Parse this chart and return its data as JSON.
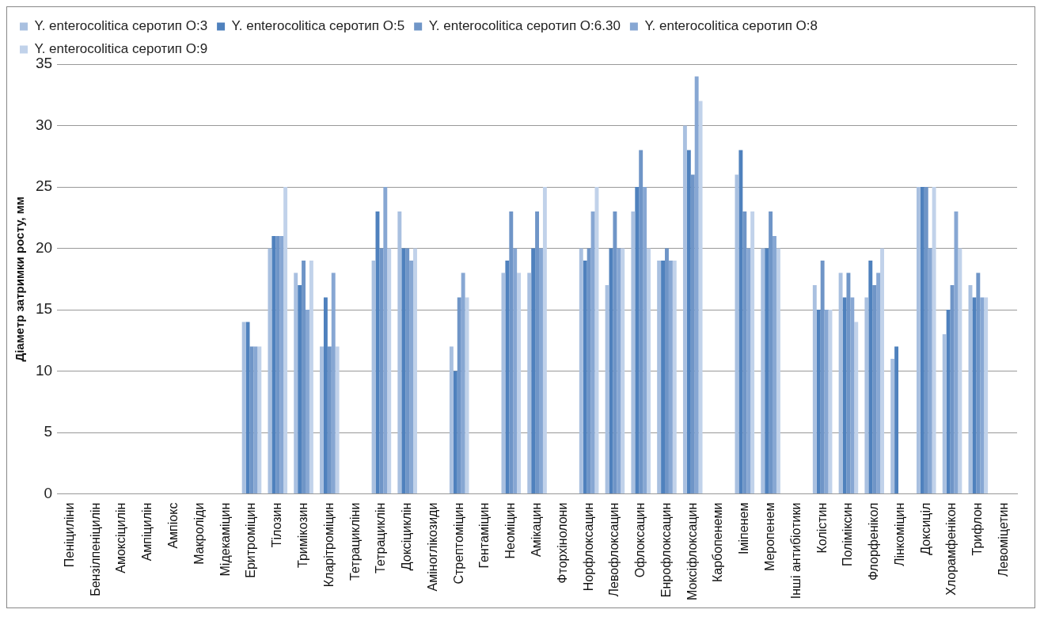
{
  "chart_data": {
    "type": "bar",
    "ylabel": "Діаметр затримки росту, мм",
    "categories": [
      "Пеніциліни",
      "Бензілпеніцилін",
      "Амоксіцилін",
      "Ампіцилін",
      "Ампіокс",
      "Макроліди",
      "Мідекаміцин",
      "Еритроміцин",
      "Тілозин",
      "Тримікозин",
      "Кларітроміцин",
      "Тетрацикліни",
      "Тетрациклін",
      "Доксіциклін",
      "Аміноглікозиди",
      "Стрептоміцин",
      "Гентаміцин",
      "Неоміцин",
      "Амікацин",
      "Фторхінолони",
      "Норфлоксацин",
      "Левофлоксацин",
      "Офлоксацин",
      "Енрофлоксацин",
      "Моксіфлоксацин",
      "Карбопенеми",
      "Іміпенем",
      "Меропенем",
      "Інші антибіотики",
      "Колістин",
      "Поліміксин",
      "Флорфенікол",
      "Лінкоміцин",
      "Доксиціл",
      "Хлорамфенікон",
      "Трифлон",
      "Левоміцетин"
    ],
    "series": [
      {
        "name": "Y. enterocolitica серотип O:3",
        "color": "#a9c0e0",
        "values": [
          0,
          0,
          0,
          0,
          0,
          0,
          0,
          14,
          20,
          18,
          12,
          0,
          19,
          23,
          0,
          12,
          0,
          18,
          18,
          0,
          20,
          17,
          23,
          19,
          30,
          0,
          26,
          20,
          0,
          17,
          18,
          16,
          11,
          25,
          13,
          17,
          0
        ]
      },
      {
        "name": "Y. enterocolitica серотип O:5",
        "color": "#4f81bd",
        "values": [
          0,
          0,
          0,
          0,
          0,
          0,
          0,
          14,
          21,
          17,
          16,
          0,
          23,
          20,
          0,
          10,
          0,
          19,
          20,
          0,
          19,
          20,
          25,
          19,
          28,
          0,
          28,
          20,
          0,
          15,
          16,
          19,
          12,
          25,
          15,
          16,
          0
        ]
      },
      {
        "name": "Y. enterocolitica серотип O:6.30",
        "color": "#6f95c7",
        "values": [
          0,
          0,
          0,
          0,
          0,
          0,
          0,
          12,
          21,
          19,
          12,
          0,
          20,
          20,
          0,
          16,
          0,
          23,
          23,
          0,
          20,
          23,
          28,
          20,
          26,
          0,
          23,
          23,
          0,
          19,
          18,
          17,
          0,
          25,
          17,
          18,
          0
        ]
      },
      {
        "name": "Y. enterocolitica серотип O:8",
        "color": "#87a7d3",
        "values": [
          0,
          0,
          0,
          0,
          0,
          0,
          0,
          12,
          21,
          15,
          18,
          0,
          25,
          19,
          0,
          18,
          0,
          20,
          20,
          0,
          23,
          20,
          25,
          19,
          34,
          0,
          20,
          21,
          0,
          15,
          16,
          18,
          0,
          20,
          23,
          16,
          0
        ]
      },
      {
        "name": "Y. enterocolitica серотип O:9",
        "color": "#c1d2ea",
        "values": [
          0,
          0,
          0,
          0,
          0,
          0,
          0,
          12,
          25,
          19,
          12,
          0,
          20,
          20,
          0,
          16,
          0,
          18,
          25,
          0,
          25,
          20,
          20,
          19,
          32,
          0,
          23,
          20,
          0,
          15,
          14,
          20,
          0,
          25,
          20,
          16,
          0
        ]
      }
    ],
    "ylim": [
      0,
      35
    ],
    "yticks": [
      0,
      5,
      10,
      15,
      20,
      25,
      30,
      35
    ],
    "grid": "y",
    "legend": "top"
  }
}
